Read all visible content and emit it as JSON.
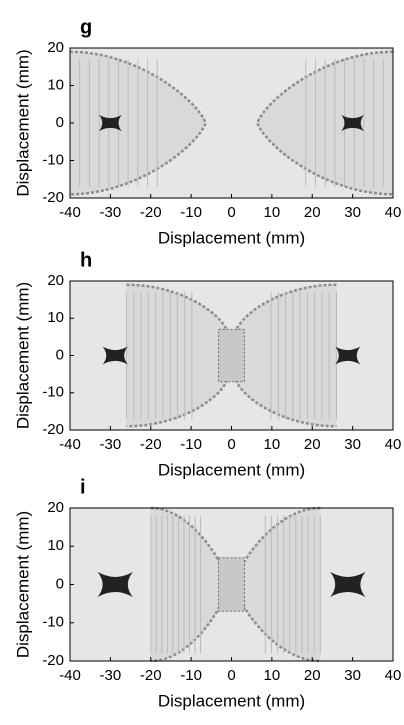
{
  "chart_data": [
    {
      "type": "image",
      "panel_label": "g",
      "xlabel": "Displacement (mm)",
      "ylabel": "Displacement (mm)",
      "xlim": [
        -40,
        40
      ],
      "ylim": [
        -20,
        20
      ],
      "xticks": [
        -40,
        -30,
        -20,
        -10,
        0,
        10,
        20,
        30,
        40
      ],
      "yticks": [
        -20,
        -10,
        0,
        10,
        20
      ]
    },
    {
      "type": "image",
      "panel_label": "h",
      "xlabel": "Displacement (mm)",
      "ylabel": "Displacement (mm)",
      "xlim": [
        -40,
        40
      ],
      "ylim": [
        -20,
        20
      ],
      "xticks": [
        -40,
        -30,
        -20,
        -10,
        0,
        10,
        20,
        30,
        40
      ],
      "yticks": [
        -20,
        -10,
        0,
        10,
        20
      ]
    },
    {
      "type": "image",
      "panel_label": "i",
      "xlabel": "Displacement (mm)",
      "ylabel": "Displacement (mm)",
      "xlim": [
        -40,
        40
      ],
      "ylim": [
        -20,
        20
      ],
      "xticks": [
        -40,
        -30,
        -20,
        -10,
        0,
        10,
        20,
        30,
        40
      ],
      "yticks": [
        -20,
        -10,
        0,
        10,
        20
      ]
    }
  ]
}
